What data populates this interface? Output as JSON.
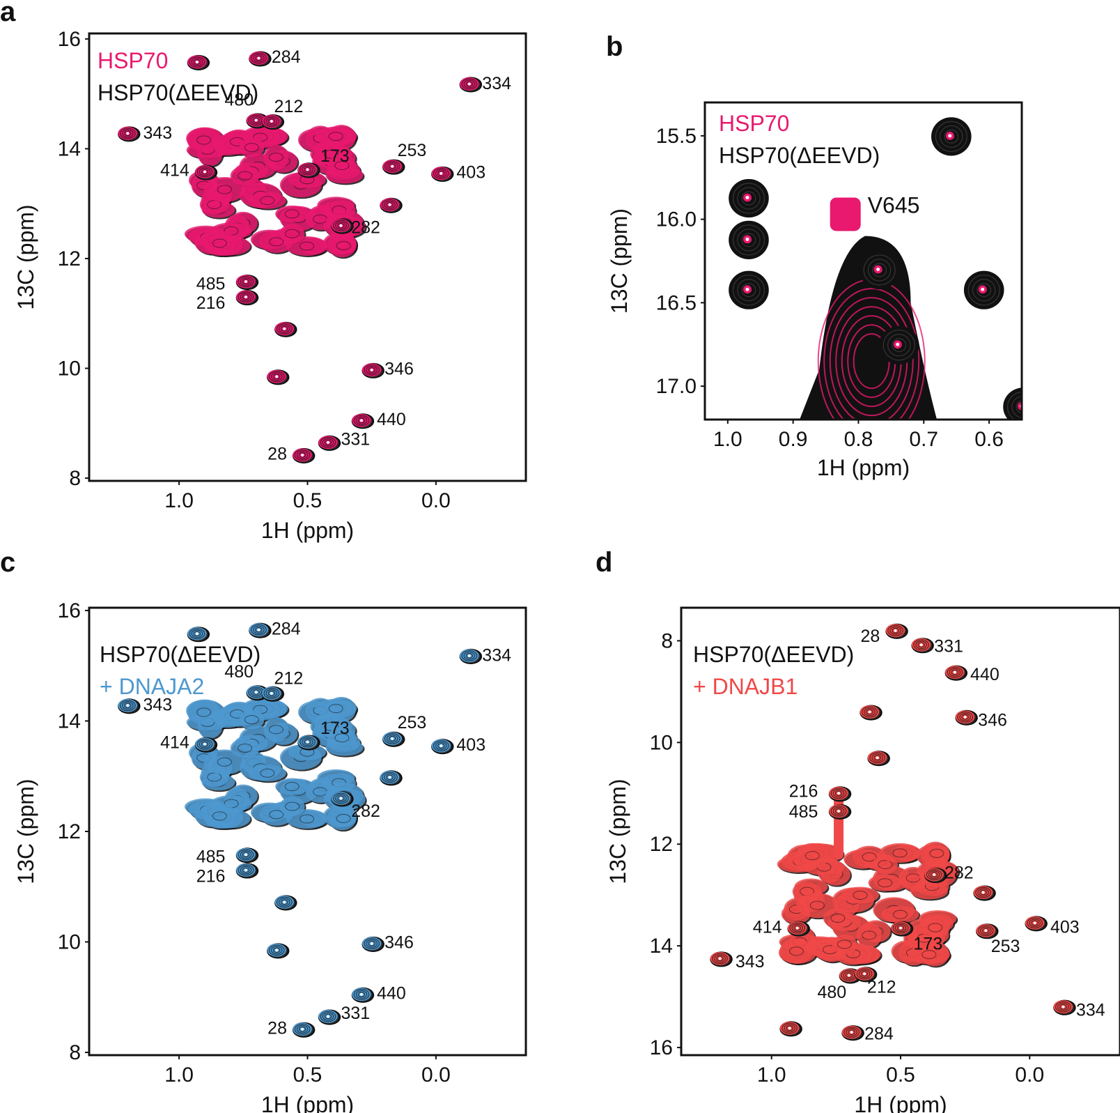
{
  "chart_data": [
    {
      "panel": "a",
      "type": "scatter",
      "xlabel": "1H (ppm)",
      "ylabel": "13C (ppm)",
      "xlim": [
        1.35,
        -0.35
      ],
      "ylim": [
        16.1,
        7.95
      ],
      "xticks": [
        "1.0",
        "0.5",
        "0.0"
      ],
      "xtick_values": [
        1.0,
        0.5,
        0.0
      ],
      "yticks": [
        "8",
        "10",
        "12",
        "14",
        "16"
      ],
      "ytick_values": [
        8,
        10,
        12,
        14,
        16
      ],
      "legend": [
        {
          "name": "HSP70",
          "color": "#e8196e"
        },
        {
          "name": "HSP70(ΔEEVD)",
          "color": "#111111"
        }
      ],
      "series_colors": {
        "ref": "#111111",
        "overlay": "#e8196e"
      },
      "peaks": [
        {
          "label": "28",
          "x": 0.52,
          "y": 8.42,
          "lx": 0.58,
          "ly": 8.45,
          "anchor": "end"
        },
        {
          "label": "331",
          "x": 0.42,
          "y": 8.65,
          "lx": 0.37,
          "ly": 8.72,
          "anchor": "start"
        },
        {
          "label": "440",
          "x": 0.29,
          "y": 9.05,
          "lx": 0.23,
          "ly": 9.08,
          "anchor": "start"
        },
        {
          "label": "346",
          "x": 0.25,
          "y": 9.97,
          "lx": 0.2,
          "ly": 10.0,
          "anchor": "start"
        },
        {
          "label": "",
          "x": 0.62,
          "y": 9.85
        },
        {
          "label": "",
          "x": 0.59,
          "y": 10.72
        },
        {
          "label": "216",
          "x": 0.74,
          "y": 11.3,
          "lx": 0.82,
          "ly": 11.2,
          "anchor": "end"
        },
        {
          "label": "485",
          "x": 0.74,
          "y": 11.58,
          "lx": 0.82,
          "ly": 11.55,
          "anchor": "end"
        },
        {
          "label": "282",
          "x": 0.37,
          "y": 12.6,
          "lx": 0.33,
          "ly": 12.58,
          "anchor": "start"
        },
        {
          "label": "",
          "x": 0.18,
          "y": 12.98
        },
        {
          "label": "403",
          "x": -0.02,
          "y": 13.55,
          "lx": -0.08,
          "ly": 13.58,
          "anchor": "start"
        },
        {
          "label": "253",
          "x": 0.17,
          "y": 13.68,
          "lx": 0.15,
          "ly": 13.98,
          "anchor": "start"
        },
        {
          "label": "173",
          "x": 0.5,
          "y": 13.62,
          "lx": 0.45,
          "ly": 13.88,
          "anchor": "start"
        },
        {
          "label": "414",
          "x": 0.9,
          "y": 13.58,
          "lx": 0.96,
          "ly": 13.62,
          "anchor": "end"
        },
        {
          "label": "343",
          "x": 1.2,
          "y": 14.28,
          "lx": 1.14,
          "ly": 14.3,
          "anchor": "start"
        },
        {
          "label": "480",
          "x": 0.7,
          "y": 14.52,
          "lx": 0.71,
          "ly": 14.9,
          "anchor": "end"
        },
        {
          "label": "212",
          "x": 0.64,
          "y": 14.5,
          "lx": 0.63,
          "ly": 14.78,
          "anchor": "start"
        },
        {
          "label": "334",
          "x": -0.13,
          "y": 15.18,
          "lx": -0.18,
          "ly": 15.2,
          "anchor": "start"
        },
        {
          "label": "",
          "x": 0.93,
          "y": 15.58
        },
        {
          "label": "284",
          "x": 0.69,
          "y": 15.65,
          "lx": 0.64,
          "ly": 15.68,
          "anchor": "start"
        }
      ]
    },
    {
      "panel": "b",
      "type": "scatter",
      "xlabel": "1H (ppm)",
      "ylabel": "13C (ppm)",
      "xlim": [
        1.035,
        0.55
      ],
      "ylim": [
        15.3,
        17.2
      ],
      "xticks": [
        "1.0",
        "0.9",
        "0.8",
        "0.7",
        "0.6"
      ],
      "xtick_values": [
        1.0,
        0.9,
        0.8,
        0.7,
        0.6
      ],
      "yticks": [
        "15.5",
        "16.0",
        "16.5",
        "17.0"
      ],
      "ytick_values": [
        15.5,
        16.0,
        16.5,
        17.0
      ],
      "legend": [
        {
          "name": "HSP70",
          "color": "#e8196e"
        },
        {
          "name": "HSP70(ΔEEVD)",
          "color": "#111111"
        }
      ],
      "series_colors": {
        "ref": "#111111",
        "overlay": "#e8196e"
      },
      "annotation": "V645",
      "annotation_peak": {
        "x": 0.82,
        "y": 15.97
      },
      "peaks": [
        {
          "x": 0.66,
          "y": 15.5
        },
        {
          "x": 0.97,
          "y": 15.87
        },
        {
          "x": 0.97,
          "y": 16.12
        },
        {
          "x": 0.97,
          "y": 16.42
        },
        {
          "x": 0.61,
          "y": 16.42
        },
        {
          "x": 0.74,
          "y": 16.75
        },
        {
          "x": 0.77,
          "y": 16.3
        },
        {
          "x": 0.55,
          "y": 17.12
        }
      ]
    },
    {
      "panel": "c",
      "type": "scatter",
      "xlabel": "1H (ppm)",
      "ylabel": "13C (ppm)",
      "xlim": [
        1.35,
        -0.35
      ],
      "ylim": [
        16.05,
        7.95
      ],
      "xticks": [
        "1.0",
        "0.5",
        "0.0"
      ],
      "xtick_values": [
        1.0,
        0.5,
        0.0
      ],
      "yticks": [
        "8",
        "10",
        "12",
        "14",
        "16"
      ],
      "ytick_values": [
        8,
        10,
        12,
        14,
        16
      ],
      "legend": [
        {
          "name": "HSP70(ΔEEVD)",
          "color": "#111111"
        },
        {
          "name": "+ DNAJA2",
          "color": "#4d98cf"
        }
      ],
      "series_colors": {
        "ref": "#111111",
        "overlay": "#4d98cf"
      },
      "peaks": [
        {
          "label": "28",
          "x": 0.52,
          "y": 8.42,
          "lx": 0.58,
          "ly": 8.45,
          "anchor": "end"
        },
        {
          "label": "331",
          "x": 0.42,
          "y": 8.65,
          "lx": 0.37,
          "ly": 8.72,
          "anchor": "start"
        },
        {
          "label": "440",
          "x": 0.29,
          "y": 9.05,
          "lx": 0.23,
          "ly": 9.08,
          "anchor": "start"
        },
        {
          "label": "346",
          "x": 0.25,
          "y": 9.97,
          "lx": 0.2,
          "ly": 10.0,
          "anchor": "start"
        },
        {
          "label": "",
          "x": 0.62,
          "y": 9.85
        },
        {
          "label": "",
          "x": 0.59,
          "y": 10.72
        },
        {
          "label": "216",
          "x": 0.74,
          "y": 11.3,
          "lx": 0.82,
          "ly": 11.2,
          "anchor": "end"
        },
        {
          "label": "485",
          "x": 0.74,
          "y": 11.58,
          "lx": 0.82,
          "ly": 11.55,
          "anchor": "end"
        },
        {
          "label": "282",
          "x": 0.37,
          "y": 12.6,
          "lx": 0.33,
          "ly": 12.38,
          "anchor": "start"
        },
        {
          "label": "",
          "x": 0.18,
          "y": 12.98
        },
        {
          "label": "403",
          "x": -0.02,
          "y": 13.55,
          "lx": -0.08,
          "ly": 13.58,
          "anchor": "start"
        },
        {
          "label": "253",
          "x": 0.17,
          "y": 13.68,
          "lx": 0.15,
          "ly": 13.98,
          "anchor": "start"
        },
        {
          "label": "173",
          "x": 0.5,
          "y": 13.62,
          "lx": 0.45,
          "ly": 13.88,
          "anchor": "start"
        },
        {
          "label": "414",
          "x": 0.9,
          "y": 13.58,
          "lx": 0.96,
          "ly": 13.62,
          "anchor": "end"
        },
        {
          "label": "343",
          "x": 1.2,
          "y": 14.28,
          "lx": 1.14,
          "ly": 14.3,
          "anchor": "start"
        },
        {
          "label": "480",
          "x": 0.7,
          "y": 14.52,
          "lx": 0.71,
          "ly": 14.9,
          "anchor": "end"
        },
        {
          "label": "212",
          "x": 0.64,
          "y": 14.5,
          "lx": 0.63,
          "ly": 14.78,
          "anchor": "start"
        },
        {
          "label": "334",
          "x": -0.13,
          "y": 15.18,
          "lx": -0.18,
          "ly": 15.2,
          "anchor": "start"
        },
        {
          "label": "",
          "x": 0.93,
          "y": 15.58
        },
        {
          "label": "284",
          "x": 0.69,
          "y": 15.65,
          "lx": 0.64,
          "ly": 15.68,
          "anchor": "start"
        }
      ]
    },
    {
      "panel": "d",
      "type": "scatter",
      "xlabel": "1H (ppm)",
      "ylabel": "13C (ppm)",
      "xlim": [
        1.35,
        -0.35
      ],
      "ylim": [
        7.35,
        16.15
      ],
      "xticks": [
        "1.0",
        "0.5",
        "0.0"
      ],
      "xtick_values": [
        1.0,
        0.5,
        0.0
      ],
      "yticks": [
        "8",
        "10",
        "12",
        "14",
        "16"
      ],
      "ytick_values": [
        8,
        10,
        12,
        14,
        16
      ],
      "legend": [
        {
          "name": "HSP70(ΔEEVD)",
          "color": "#111111"
        },
        {
          "name": "+ DNAJB1",
          "color": "#f04848"
        }
      ],
      "series_colors": {
        "ref": "#111111",
        "overlay": "#f04848"
      },
      "peaks": [
        {
          "label": "28",
          "x": 0.52,
          "y": 7.8,
          "lx": 0.58,
          "ly": 7.9,
          "anchor": "end"
        },
        {
          "label": "331",
          "x": 0.42,
          "y": 8.08,
          "lx": 0.37,
          "ly": 8.1,
          "anchor": "start"
        },
        {
          "label": "440",
          "x": 0.29,
          "y": 8.62,
          "lx": 0.23,
          "ly": 8.65,
          "anchor": "start"
        },
        {
          "label": "346",
          "x": 0.25,
          "y": 9.5,
          "lx": 0.2,
          "ly": 9.55,
          "anchor": "start"
        },
        {
          "label": "",
          "x": 0.62,
          "y": 9.4
        },
        {
          "label": "",
          "x": 0.59,
          "y": 10.3
        },
        {
          "label": "216",
          "x": 0.74,
          "y": 11.0,
          "lx": 0.82,
          "ly": 10.95,
          "anchor": "end"
        },
        {
          "label": "485",
          "x": 0.74,
          "y": 11.35,
          "lx": 0.82,
          "ly": 11.35,
          "anchor": "end"
        },
        {
          "label": "282",
          "x": 0.37,
          "y": 12.6,
          "lx": 0.33,
          "ly": 12.55,
          "anchor": "start"
        },
        {
          "label": "",
          "x": 0.18,
          "y": 12.95
        },
        {
          "label": "403",
          "x": -0.02,
          "y": 13.55,
          "lx": -0.08,
          "ly": 13.62,
          "anchor": "start"
        },
        {
          "label": "253",
          "x": 0.17,
          "y": 13.7,
          "lx": 0.15,
          "ly": 14.0,
          "anchor": "start"
        },
        {
          "label": "173",
          "x": 0.5,
          "y": 13.65,
          "lx": 0.45,
          "ly": 13.95,
          "anchor": "start"
        },
        {
          "label": "414",
          "x": 0.9,
          "y": 13.65,
          "lx": 0.96,
          "ly": 13.62,
          "anchor": "end"
        },
        {
          "label": "343",
          "x": 1.2,
          "y": 14.25,
          "lx": 1.14,
          "ly": 14.3,
          "anchor": "start"
        },
        {
          "label": "480",
          "x": 0.7,
          "y": 14.58,
          "lx": 0.71,
          "ly": 14.9,
          "anchor": "end"
        },
        {
          "label": "212",
          "x": 0.64,
          "y": 14.55,
          "lx": 0.63,
          "ly": 14.8,
          "anchor": "start"
        },
        {
          "label": "334",
          "x": -0.13,
          "y": 15.2,
          "lx": -0.18,
          "ly": 15.25,
          "anchor": "start"
        },
        {
          "label": "",
          "x": 0.93,
          "y": 15.62
        },
        {
          "label": "284",
          "x": 0.69,
          "y": 15.7,
          "lx": 0.64,
          "ly": 15.72,
          "anchor": "start"
        }
      ]
    }
  ]
}
